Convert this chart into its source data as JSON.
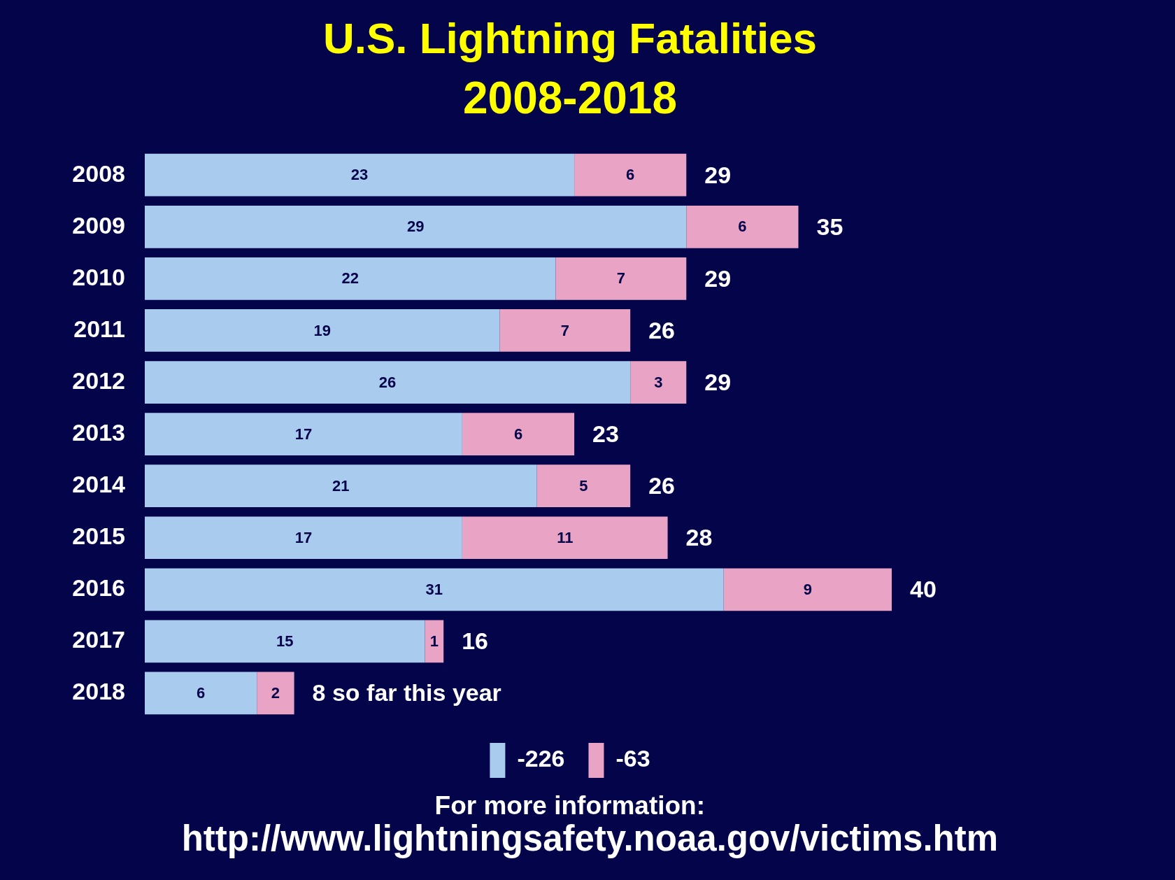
{
  "chart_data": {
    "type": "bar",
    "orientation": "horizontal",
    "stacked": true,
    "title": "U.S. Lightning Fatalities",
    "subtitle": "2008-2018",
    "categories": [
      "2008",
      "2009",
      "2010",
      "2011",
      "2012",
      "2013",
      "2014",
      "2015",
      "2016",
      "2017",
      "2018"
    ],
    "series": [
      {
        "name": "-226",
        "color": "#a9cbee",
        "values": [
          23,
          29,
          22,
          19,
          26,
          17,
          21,
          17,
          31,
          15,
          6
        ]
      },
      {
        "name": "-63",
        "color": "#e8a3c5",
        "values": [
          6,
          6,
          7,
          7,
          3,
          6,
          5,
          11,
          9,
          1,
          2
        ]
      }
    ],
    "data_labels": true,
    "totals": [
      "29",
      "35",
      "29",
      "26",
      "29",
      "23",
      "26",
      "28",
      "40",
      "16",
      "8 so far this year"
    ],
    "legend": "bottom",
    "annotations": [
      "For more information:",
      "http://www.lightningsafety.noaa.gov/victims.htm"
    ]
  }
}
